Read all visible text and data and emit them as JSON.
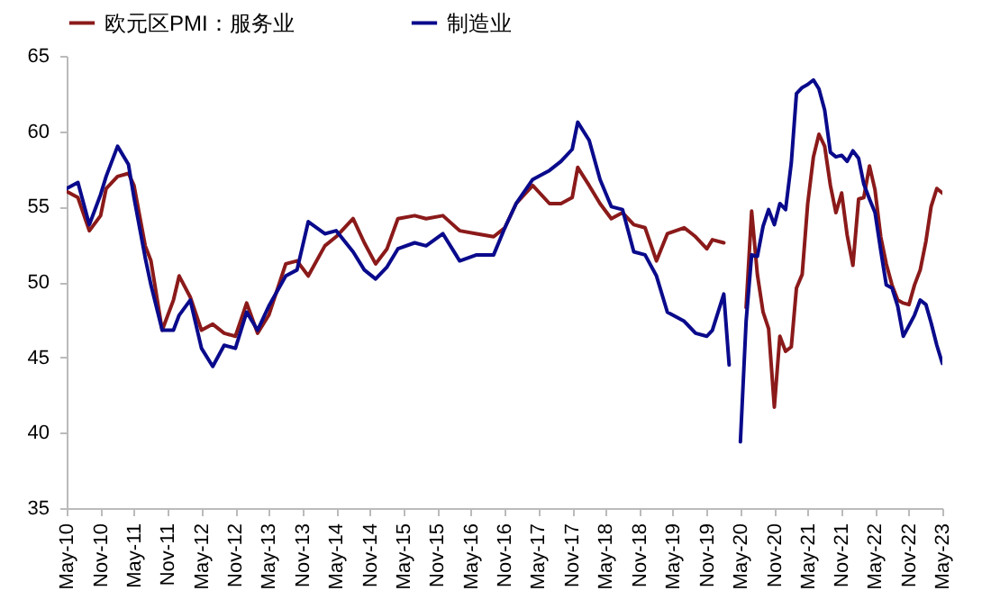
{
  "chart_data": {
    "type": "line",
    "x": [
      "2010-05",
      "2010-07",
      "2010-09",
      "2010-11",
      "2010-12",
      "2011-02",
      "2011-04",
      "2011-05",
      "2011-07",
      "2011-08",
      "2011-10",
      "2011-12",
      "2012-01",
      "2012-03",
      "2012-05",
      "2012-07",
      "2012-09",
      "2012-11",
      "2013-01",
      "2013-03",
      "2013-05",
      "2013-08",
      "2013-10",
      "2013-12",
      "2014-03",
      "2014-05",
      "2014-08",
      "2014-10",
      "2014-12",
      "2015-02",
      "2015-04",
      "2015-07",
      "2015-09",
      "2015-12",
      "2016-03",
      "2016-06",
      "2016-09",
      "2016-11",
      "2017-01",
      "2017-04",
      "2017-07",
      "2017-09",
      "2017-11",
      "2017-12",
      "2018-02",
      "2018-04",
      "2018-06",
      "2018-08",
      "2018-10",
      "2018-12",
      "2019-02",
      "2019-04",
      "2019-07",
      "2019-09",
      "2019-11",
      "2019-12",
      "2020-02",
      "2020-03",
      "2020-04",
      "2020-05",
      "2020-06",
      "2020-07",
      "2020-08",
      "2020-09",
      "2020-10",
      "2020-11",
      "2020-12",
      "2021-01",
      "2021-02",
      "2021-03",
      "2021-04",
      "2021-05",
      "2021-06",
      "2021-07",
      "2021-08",
      "2021-09",
      "2021-10",
      "2021-11",
      "2021-12",
      "2022-01",
      "2022-02",
      "2022-03",
      "2022-04",
      "2022-05",
      "2022-06",
      "2022-07",
      "2022-08",
      "2022-09",
      "2022-10",
      "2022-11",
      "2022-12",
      "2023-01",
      "2023-02",
      "2023-03",
      "2023-04",
      "2023-05"
    ],
    "series": [
      {
        "name": "欧元区PMI：服务业",
        "color": "#8b1a1a",
        "values": [
          56,
          55.6,
          53.4,
          54.4,
          56.2,
          57,
          57.2,
          56.4,
          52.4,
          51.4,
          46.8,
          48.8,
          50.4,
          49,
          46.8,
          47.2,
          46.6,
          46.4,
          48.6,
          46.6,
          47.8,
          51.2,
          51.4,
          50.4,
          52.4,
          53,
          54.2,
          52.6,
          51.2,
          52.2,
          54.2,
          54.4,
          54.2,
          54.4,
          53.4,
          53.2,
          53,
          53.6,
          55.2,
          56.4,
          55.2,
          55.2,
          55.6,
          57.6,
          56.4,
          55.2,
          54.2,
          54.6,
          53.8,
          53.6,
          51.4,
          53.2,
          53.6,
          53,
          52.2,
          52.8,
          52.6,
          null,
          null,
          null,
          48.3,
          54.7,
          50.5,
          48,
          46.9,
          41.7,
          46.4,
          45.4,
          45.7,
          49.6,
          50.5,
          55.2,
          58.3,
          59.8,
          59,
          56.4,
          54.6,
          55.9,
          53.1,
          51.1,
          55.5,
          55.6,
          57.7,
          56.1,
          53,
          51.2,
          49.8,
          48.8,
          48.6,
          48.5,
          49.8,
          50.8,
          52.7,
          55,
          56.2,
          55.9
        ]
      },
      {
        "name": "制造业",
        "color": "#0a0a8c",
        "values": [
          56.2,
          56.6,
          53.8,
          55.8,
          57,
          59,
          57.8,
          55.6,
          51.6,
          49.8,
          46.8,
          46.8,
          47.8,
          48.8,
          45.6,
          44.4,
          45.8,
          45.6,
          48,
          46.8,
          48.4,
          50.4,
          50.8,
          54,
          53.2,
          53.4,
          52,
          50.8,
          50.2,
          51,
          52.2,
          52.6,
          52.4,
          53.2,
          51.4,
          51.8,
          51.8,
          53.6,
          55.2,
          56.8,
          57.4,
          58,
          58.8,
          60.6,
          59.4,
          56.8,
          55,
          54.8,
          52,
          51.8,
          50.4,
          48,
          47.4,
          46.6,
          46.4,
          46.8,
          49.2,
          44.5,
          null,
          39.4,
          47.4,
          51.8,
          51.7,
          53.7,
          54.8,
          53.8,
          55.2,
          54.8,
          57.9,
          62.5,
          62.9,
          63.1,
          63.4,
          62.8,
          61.4,
          58.6,
          58.3,
          58.4,
          58,
          58.7,
          58.2,
          56.5,
          55.5,
          54.6,
          52.1,
          49.8,
          49.6,
          48.4,
          46.4,
          47.1,
          47.8,
          48.8,
          48.5,
          47.3,
          45.8,
          44.6
        ]
      }
    ],
    "xlim": [
      "2010-05",
      "2023-05"
    ],
    "xticks": [
      {
        "value": "2010-05",
        "label": "May-10"
      },
      {
        "value": "2010-11",
        "label": "Nov-10"
      },
      {
        "value": "2011-05",
        "label": "May-11"
      },
      {
        "value": "2011-11",
        "label": "Nov-11"
      },
      {
        "value": "2012-05",
        "label": "May-12"
      },
      {
        "value": "2012-11",
        "label": "Nov-12"
      },
      {
        "value": "2013-05",
        "label": "May-13"
      },
      {
        "value": "2013-11",
        "label": "Nov-13"
      },
      {
        "value": "2014-05",
        "label": "May-14"
      },
      {
        "value": "2014-11",
        "label": "Nov-14"
      },
      {
        "value": "2015-05",
        "label": "May-15"
      },
      {
        "value": "2015-11",
        "label": "Nov-15"
      },
      {
        "value": "2016-05",
        "label": "May-16"
      },
      {
        "value": "2016-11",
        "label": "Nov-16"
      },
      {
        "value": "2017-05",
        "label": "May-17"
      },
      {
        "value": "2017-11",
        "label": "Nov-17"
      },
      {
        "value": "2018-05",
        "label": "May-18"
      },
      {
        "value": "2018-11",
        "label": "Nov-18"
      },
      {
        "value": "2019-05",
        "label": "May-19"
      },
      {
        "value": "2019-11",
        "label": "Nov-19"
      },
      {
        "value": "2020-05",
        "label": "May-20"
      },
      {
        "value": "2020-11",
        "label": "Nov-20"
      },
      {
        "value": "2021-05",
        "label": "May-21"
      },
      {
        "value": "2021-11",
        "label": "Nov-21"
      },
      {
        "value": "2022-05",
        "label": "May-22"
      },
      {
        "value": "2022-11",
        "label": "Nov-22"
      },
      {
        "value": "2023-05",
        "label": "May-23"
      }
    ],
    "ylim": [
      35,
      65
    ],
    "yticks": [
      35,
      40,
      45,
      50,
      55,
      60,
      65
    ],
    "grid": false,
    "legend": "top",
    "marker": "none",
    "line_style": "solid"
  }
}
